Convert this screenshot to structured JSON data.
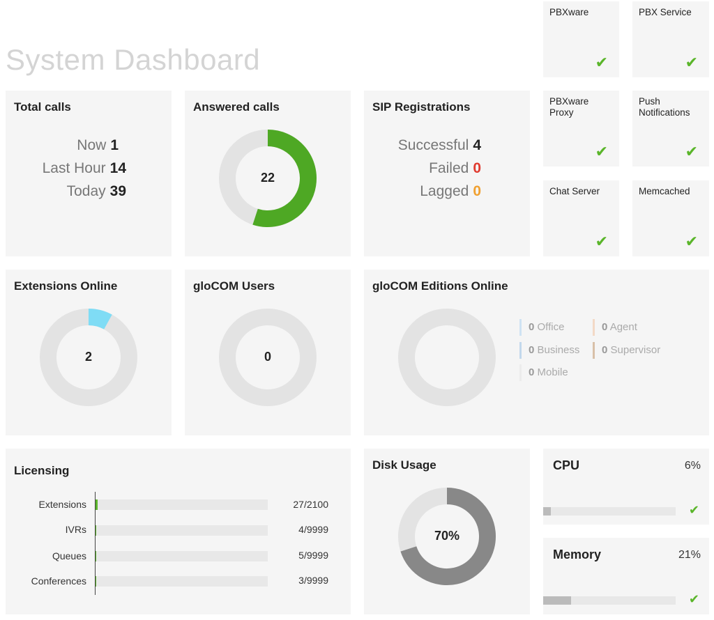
{
  "page": {
    "title": "System Dashboard"
  },
  "services": [
    {
      "label": "PBXware",
      "status": "ok"
    },
    {
      "label": "PBX Service",
      "status": "ok"
    },
    {
      "label": "PBXware\nProxy",
      "status": "ok"
    },
    {
      "label": "Push\nNotifications",
      "status": "ok"
    },
    {
      "label": "Chat Server",
      "status": "ok"
    },
    {
      "label": "Memcached",
      "status": "ok"
    }
  ],
  "check_glyph": "✔",
  "total_calls": {
    "title": "Total calls",
    "rows": [
      {
        "label": "Now",
        "value": "1"
      },
      {
        "label": "Last Hour",
        "value": "14"
      },
      {
        "label": "Today",
        "value": "39"
      }
    ]
  },
  "answered_calls": {
    "title": "Answered calls",
    "value": "22",
    "fraction": 0.55,
    "color": "#4ea824"
  },
  "sip_registrations": {
    "title": "SIP Registrations",
    "rows": [
      {
        "label": "Successful",
        "value": "4"
      },
      {
        "label": "Failed",
        "value": "0"
      },
      {
        "label": "Lagged",
        "value": "0"
      }
    ]
  },
  "extensions_online": {
    "title": "Extensions Online",
    "value": "2",
    "fraction": 0.08,
    "color": "#7fdcf5"
  },
  "glocom_users": {
    "title": "gloCOM Users",
    "value": "0",
    "fraction": 0
  },
  "glocom_editions": {
    "title": "gloCOM Editions Online",
    "legend": [
      {
        "count": "0",
        "name": "Office",
        "color": "#cfe3f3"
      },
      {
        "count": "0",
        "name": "Agent",
        "color": "#f3d9c6"
      },
      {
        "count": "0",
        "name": "Business",
        "color": "#c2d8ec"
      },
      {
        "count": "0",
        "name": "Supervisor",
        "color": "#d8c0a8"
      },
      {
        "count": "0",
        "name": "Mobile",
        "color": "#ececec"
      }
    ]
  },
  "licensing": {
    "title": "Licensing",
    "rows": [
      {
        "label": "Extensions",
        "value": "27/2100",
        "fraction": 0.013
      },
      {
        "label": "IVRs",
        "value": "4/9999",
        "fraction": 0.0004
      },
      {
        "label": "Queues",
        "value": "5/9999",
        "fraction": 0.0005
      },
      {
        "label": "Conferences",
        "value": "3/9999",
        "fraction": 0.0003
      }
    ]
  },
  "disk_usage": {
    "title": "Disk Usage",
    "value": "70%",
    "fraction": 0.7,
    "color": "#888888"
  },
  "cpu": {
    "title": "CPU",
    "value": "6%",
    "fraction": 0.06
  },
  "memory": {
    "title": "Memory",
    "value": "21%",
    "fraction": 0.21
  }
}
